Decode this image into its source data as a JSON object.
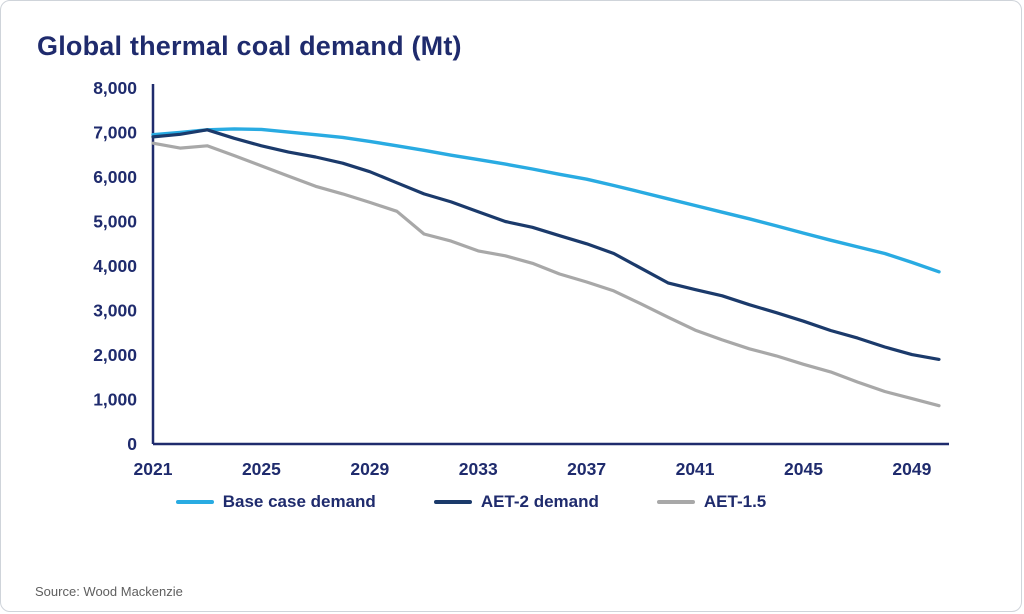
{
  "page": {
    "title": "Global thermal coal demand (Mt)",
    "source": "Source: Wood Mackenzie"
  },
  "colors": {
    "title_text": "#1f2b6d",
    "axis": "#1f2b6d",
    "tick_label": "#1f2b6d",
    "source_text": "#5f5f5f"
  },
  "chart_data": {
    "type": "line",
    "title": "Global thermal coal demand (Mt)",
    "xlabel": "",
    "ylabel": "",
    "xlim": [
      2021,
      2050
    ],
    "ylim": [
      0,
      8000
    ],
    "grid": false,
    "legend_position": "bottom",
    "x_ticks": [
      2021,
      2025,
      2029,
      2033,
      2037,
      2041,
      2045,
      2049
    ],
    "y_ticks": [
      0,
      1000,
      2000,
      3000,
      4000,
      5000,
      6000,
      7000,
      8000
    ],
    "x": [
      2021,
      2022,
      2023,
      2024,
      2025,
      2026,
      2027,
      2028,
      2029,
      2030,
      2031,
      2032,
      2033,
      2034,
      2035,
      2036,
      2037,
      2038,
      2039,
      2040,
      2041,
      2042,
      2043,
      2044,
      2045,
      2046,
      2047,
      2048,
      2049,
      2050
    ],
    "series": [
      {
        "name": "Base case demand",
        "color": "#29abe2",
        "stroke_width": 3.4,
        "values": [
          6950,
          7000,
          7060,
          7080,
          7070,
          7010,
          6950,
          6890,
          6800,
          6700,
          6600,
          6490,
          6390,
          6290,
          6180,
          6060,
          5950,
          5810,
          5660,
          5510,
          5360,
          5210,
          5060,
          4900,
          4740,
          4580,
          4430,
          4280,
          4080,
          3870
        ]
      },
      {
        "name": "AET-2 demand",
        "color": "#1b3a6b",
        "stroke_width": 3.2,
        "values": [
          6900,
          6960,
          7060,
          6870,
          6700,
          6560,
          6450,
          6310,
          6120,
          5870,
          5620,
          5440,
          5220,
          5000,
          4870,
          4680,
          4500,
          4280,
          3950,
          3620,
          3470,
          3330,
          3130,
          2950,
          2760,
          2550,
          2380,
          2180,
          2010,
          1900
        ]
      },
      {
        "name": "AET-1.5",
        "color": "#a8a8a8",
        "stroke_width": 3.2,
        "values": [
          6760,
          6650,
          6700,
          6480,
          6250,
          6020,
          5790,
          5620,
          5430,
          5230,
          4720,
          4560,
          4340,
          4230,
          4060,
          3820,
          3640,
          3440,
          3150,
          2850,
          2560,
          2340,
          2140,
          1980,
          1790,
          1620,
          1390,
          1180,
          1020,
          860
        ]
      }
    ]
  }
}
